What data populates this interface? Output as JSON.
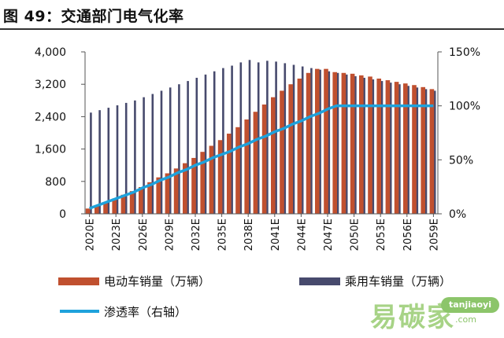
{
  "page": {
    "title": "图 49：交通部门电气化率"
  },
  "watermark": {
    "brand": "易碳家",
    "badge": "tanjiaoyi",
    "domain": ".com"
  },
  "chart_data": {
    "type": "bar",
    "x": [
      "2020E",
      "2021E",
      "2022E",
      "2023E",
      "2024E",
      "2025E",
      "2026E",
      "2027E",
      "2028E",
      "2029E",
      "2030E",
      "2031E",
      "2032E",
      "2033E",
      "2034E",
      "2035E",
      "2036E",
      "2037E",
      "2038E",
      "2039E",
      "2040E",
      "2041E",
      "2042E",
      "2043E",
      "2044E",
      "2045E",
      "2046E",
      "2047E",
      "2048E",
      "2049E",
      "2050E",
      "2051E",
      "2052E",
      "2053E",
      "2054E",
      "2055E",
      "2056E",
      "2057E",
      "2058E",
      "2059E"
    ],
    "x_tick_labels": [
      "2020E",
      "2023E",
      "2026E",
      "2029E",
      "2032E",
      "2035E",
      "2038E",
      "2041E",
      "2044E",
      "2047E",
      "2050E",
      "2053E",
      "2056E",
      "2059E"
    ],
    "series": [
      {
        "name": "电动车销量（万辆）",
        "axis": "left",
        "color": "#c0502f",
        "values": [
          130,
          210,
          290,
          380,
          470,
          560,
          660,
          780,
          900,
          1000,
          1120,
          1250,
          1380,
          1530,
          1680,
          1820,
          1980,
          2140,
          2330,
          2520,
          2700,
          2880,
          3040,
          3200,
          3340,
          3480,
          3580,
          3580,
          3500,
          3480,
          3460,
          3420,
          3390,
          3340,
          3300,
          3260,
          3220,
          3180,
          3130,
          3080
        ]
      },
      {
        "name": "乘用车销量（万辆）",
        "axis": "right",
        "color": "#474a6d",
        "values": [
          2500,
          2560,
          2620,
          2680,
          2740,
          2800,
          2880,
          2960,
          3040,
          3120,
          3200,
          3280,
          3360,
          3440,
          3520,
          3600,
          3660,
          3740,
          3800,
          3740,
          3780,
          3760,
          3720,
          3680,
          3640,
          3600,
          3560,
          3520,
          3480,
          3440,
          3400,
          3360,
          3320,
          3280,
          3240,
          3200,
          3160,
          3120,
          3080,
          3040
        ]
      },
      {
        "name": "渗透率（右轴）",
        "axis": "right",
        "type": "line",
        "color": "#1ea2dc",
        "values": [
          5,
          8,
          11,
          14,
          17,
          20,
          24,
          27,
          31,
          34,
          38,
          41,
          45,
          48,
          52,
          55,
          58,
          62,
          65,
          69,
          72,
          76,
          79,
          83,
          86,
          90,
          93,
          97,
          100,
          100,
          100,
          100,
          100,
          100,
          100,
          100,
          100,
          100,
          100,
          100
        ]
      }
    ],
    "y_left": {
      "ticks": [
        "0",
        "800",
        "1,600",
        "2,400",
        "3,200",
        "4,000"
      ],
      "ylim": [
        0,
        4000
      ]
    },
    "y_right": {
      "ticks": [
        "0%",
        "50%",
        "100%",
        "150%"
      ],
      "ylim": [
        0,
        150
      ]
    },
    "legend_position": "bottom",
    "grid": false
  }
}
